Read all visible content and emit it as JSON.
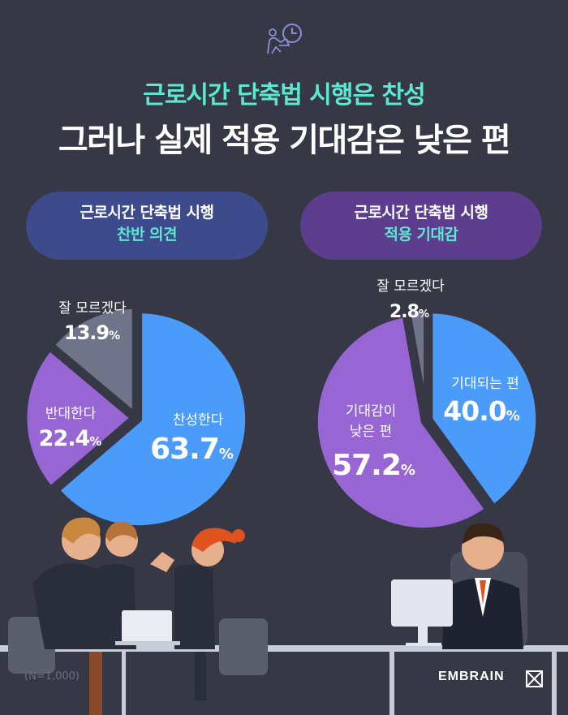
{
  "title": {
    "line1": "근로시간 단축법 시행은 찬성",
    "line2": "그러나 실제 적용 기대감은 낮은 편"
  },
  "colors": {
    "background": "#363845",
    "accent": "#5ee6d0",
    "blue": "#4a9bfa",
    "purple": "#9766d4",
    "gray": "#6f7488"
  },
  "chart_data": [
    {
      "type": "pie",
      "title_line1": "근로시간 단축법 시행",
      "title_line2": "찬반 의견",
      "slices": [
        {
          "label": "찬성한다",
          "value": 63.7,
          "display": "63.7",
          "color": "#4a9bfa"
        },
        {
          "label": "반대한다",
          "value": 22.4,
          "display": "22.4",
          "color": "#9766d4"
        },
        {
          "label": "잘 모르겠다",
          "value": 13.9,
          "display": "13.9",
          "color": "#6f7488"
        }
      ],
      "unit": "%"
    },
    {
      "type": "pie",
      "title_line1": "근로시간 단축법 시행",
      "title_line2": "적용 기대감",
      "slices": [
        {
          "label": "기대되는 편",
          "value": 40.0,
          "display": "40.0",
          "color": "#4a9bfa"
        },
        {
          "label": "기대감이 낮은 편",
          "value": 57.2,
          "display": "57.2",
          "color": "#9766d4"
        },
        {
          "label": "잘 모르겠다",
          "value": 2.8,
          "display": "2.8",
          "color": "#6f7488"
        }
      ],
      "unit": "%"
    }
  ],
  "footer": {
    "sample": "(N=1,000)",
    "brand": "EMBRAIN",
    "brand_icon": "embrain-logo-icon"
  },
  "header_icon": "person-laptop-clock-icon"
}
